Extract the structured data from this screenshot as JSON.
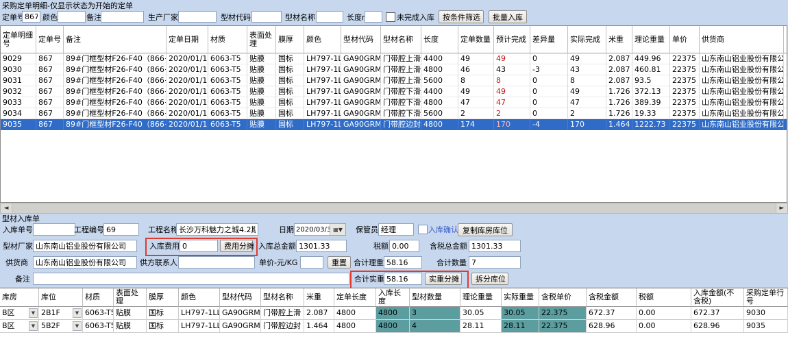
{
  "title": "采购定单明细-仅显示状态为开始的定单",
  "filter": {
    "order_no_label": "定单号",
    "order_no_value": "867",
    "color_label": "颜色",
    "color_value": "",
    "note_label": "备注",
    "note_value": "",
    "manufacturer_label": "生产厂家",
    "manufacturer_value": "",
    "profile_code_label": "型材代码",
    "profile_code_value": "",
    "profile_name_label": "型材名称",
    "profile_name_value": "",
    "length_label": "长度mm",
    "length_value": "",
    "unfinished_checkbox_label": "未完成入库",
    "filter_button": "按条件筛选",
    "batch_inbound_button": "批量入库"
  },
  "main_table": {
    "columns": [
      "定单明细号",
      "定单号",
      "备注",
      "定单日期",
      "材质",
      "表面处理",
      "膜厚",
      "颜色",
      "型材代码",
      "型材名称",
      "长度",
      "定单数量",
      "预计完成",
      "差异量",
      "实际完成",
      "米重",
      "理论重量",
      "单价",
      "供货商",
      ""
    ],
    "rows": [
      {
        "cells": [
          "9029",
          "867",
          "89#门框型材F26-F40（866+867）",
          "2020/01/13",
          "6063-T5",
          "贴膜",
          "国标",
          "LH797-1LL0",
          "GA90GRM03",
          "门带腔上滑",
          "4400",
          "49",
          "49",
          "0",
          "49",
          "2.087",
          "449.96",
          "22375",
          "山东南山铝业股份有限公司"
        ],
        "plan_red": true,
        "selected": false
      },
      {
        "cells": [
          "9030",
          "867",
          "89#门框型材F26-F40（866+867）",
          "2020/01/13",
          "6063-T5",
          "贴膜",
          "国标",
          "LH797-1LL0",
          "GA90GRM03",
          "门带腔上滑",
          "4800",
          "46",
          "43",
          "-3",
          "43",
          "2.087",
          "460.81",
          "22375",
          "山东南山铝业股份有限公司"
        ],
        "plan_red": false,
        "selected": false
      },
      {
        "cells": [
          "9031",
          "867",
          "89#门框型材F26-F40（866+867）",
          "2020/01/13",
          "6063-T5",
          "贴膜",
          "国标",
          "LH797-1LL0",
          "GA90GRM03",
          "门带腔上滑",
          "5600",
          "8",
          "8",
          "0",
          "8",
          "2.087",
          "93.5",
          "22375",
          "山东南山铝业股份有限公司"
        ],
        "plan_red": true,
        "selected": false
      },
      {
        "cells": [
          "9032",
          "867",
          "89#门框型材F26-F40（866+867）",
          "2020/01/13",
          "6063-T5",
          "贴膜",
          "国标",
          "LH797-1LL0",
          "GA90GRM04",
          "门带腔下滑",
          "4400",
          "49",
          "49",
          "0",
          "49",
          "1.726",
          "372.13",
          "22375",
          "山东南山铝业股份有限公司"
        ],
        "plan_red": true,
        "selected": false
      },
      {
        "cells": [
          "9033",
          "867",
          "89#门框型材F26-F40（866+867）",
          "2020/01/13",
          "6063-T5",
          "贴膜",
          "国标",
          "LH797-1LL0",
          "GA90GRM04",
          "门带腔下滑",
          "4800",
          "47",
          "47",
          "0",
          "47",
          "1.726",
          "389.39",
          "22375",
          "山东南山铝业股份有限公司"
        ],
        "plan_red": true,
        "selected": false
      },
      {
        "cells": [
          "9034",
          "867",
          "89#门框型材F26-F40（866+867）",
          "2020/01/13",
          "6063-T5",
          "贴膜",
          "国标",
          "LH797-1LL0",
          "GA90GRM04",
          "门带腔下滑",
          "5600",
          "2",
          "2",
          "0",
          "2",
          "1.726",
          "19.33",
          "22375",
          "山东南山铝业股份有限公司"
        ],
        "plan_red": true,
        "selected": false
      },
      {
        "cells": [
          "9035",
          "867",
          "89#门框型材F26-F40（866+867）",
          "2020/01/13",
          "6063-T5",
          "贴膜",
          "国标",
          "LH797-1LL0",
          "GA90GRM05",
          "门带腔边封",
          "4800",
          "174",
          "170",
          "-4",
          "170",
          "1.464",
          "1222.73",
          "22375",
          "山东南山铝业股份有限公司"
        ],
        "plan_red": true,
        "selected": true
      }
    ]
  },
  "inbound_form": {
    "section_title": "型材入库单",
    "inbound_no_label": "入库单号",
    "inbound_no_value": "",
    "project_no_label": "工程编号",
    "project_no_value": "69",
    "project_name_label": "工程名称",
    "project_name_value": "长沙万科魅力之城4.2期",
    "date_label": "日期",
    "date_value": "2020/03/31",
    "keeper_label": "保管员",
    "keeper_value": "经理",
    "confirm_checkbox_label": "入库确认",
    "copy_location_button": "复制库房库位",
    "factory_label": "型材厂家",
    "factory_value": "山东南山铝业股份有限公司",
    "inbound_fee_label": "入库费用",
    "inbound_fee_value": "0",
    "fee_share_button": "费用分摊",
    "total_amount_label": "入库总金额",
    "total_amount_value": "1301.33",
    "tax_label": "税额",
    "tax_value": "0.00",
    "total_with_tax_label": "含税总金额",
    "total_with_tax_value": "1301.33",
    "supplier_label": "供货商",
    "supplier_value": "山东南山铝业股份有限公司",
    "supplier_contact_label": "供方联系人",
    "supplier_contact_value": "",
    "unit_price_label": "单价-元/KG",
    "unit_price_value": "",
    "reset_button": "重置",
    "total_theory_weight_label": "合计理重",
    "total_theory_weight_value": "58.16",
    "total_qty_label": "合计数量",
    "total_qty_value": "7",
    "remark_label": "备注",
    "remark_value": "",
    "total_actual_weight_label": "合计实重",
    "total_actual_weight_value": "58.16",
    "actual_share_button": "实重分摊",
    "split_location_button": "拆分库位"
  },
  "bottom_table": {
    "columns": [
      "库房",
      "库位",
      "材质",
      "表面处理",
      "膜厚",
      "颜色",
      "型材代码",
      "型材名称",
      "米重",
      "定单长度",
      "入库长度",
      "型材数量",
      "理论重量",
      "实际重量",
      "含税单价",
      "含税金额",
      "税额",
      "入库金额(不含税)",
      "采购定单行号"
    ],
    "teal_columns": [
      10,
      11,
      13,
      14
    ],
    "rows": [
      {
        "cells": [
          "B区",
          "2B1F",
          "6063-T5",
          "贴膜",
          "国标",
          "LH797-1LL0",
          "GA90GRM03",
          "门带腔上滑",
          "2.087",
          "4800",
          "4800",
          "3",
          "30.05",
          "30.05",
          "22.375",
          "672.37",
          "0.00",
          "672.37",
          "9030"
        ]
      },
      {
        "cells": [
          "B区",
          "5B2F",
          "6063-T5",
          "贴膜",
          "国标",
          "LH797-1LL0",
          "GA90GRM05",
          "门带腔边封",
          "1.464",
          "4800",
          "4800",
          "4",
          "28.11",
          "28.11",
          "22.375",
          "628.96",
          "0.00",
          "628.96",
          "9035"
        ]
      }
    ]
  },
  "colors": {
    "background": "#c7d7ee",
    "selected_row": "#2f6bc7",
    "teal_cell": "#5c9ea0",
    "alert_red": "#c21414",
    "highlight_box": "#e23a2c"
  }
}
